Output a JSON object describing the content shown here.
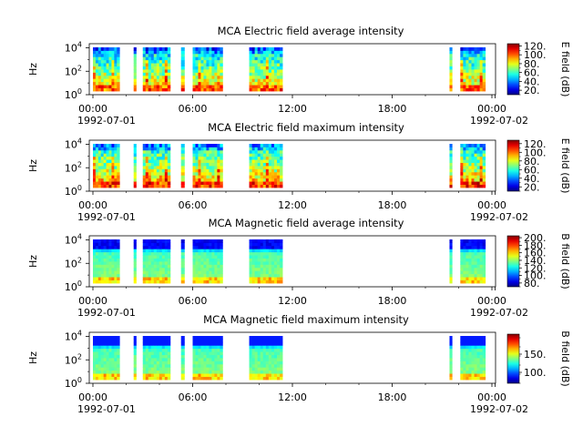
{
  "chart_data": [
    {
      "type": "heatmap",
      "title": "MCA  Electric field average intensity",
      "ylabel": "Hz",
      "y_scale": "log",
      "y_ticks": [
        "10^0",
        "10^2",
        "10^4"
      ],
      "x_ticks": [
        "00:00",
        "06:00",
        "12:00",
        "18:00",
        "00:00"
      ],
      "x_date_start": "1992-07-01",
      "x_date_end": "1992-07-02",
      "colorbar": {
        "label": "E field (dB)",
        "ticks": [
          20,
          40,
          60,
          80,
          100,
          120
        ],
        "range": [
          10,
          125
        ]
      },
      "segments_hours": [
        [
          0.0,
          1.6
        ],
        [
          2.45,
          2.6
        ],
        [
          3.0,
          4.65
        ],
        [
          5.3,
          5.5
        ],
        [
          6.0,
          7.8
        ],
        [
          9.4,
          11.4
        ],
        [
          21.45,
          21.6
        ],
        [
          22.1,
          23.6
        ]
      ],
      "palette": "electric_avg",
      "texture_seed": 11
    },
    {
      "type": "heatmap",
      "title": "MCA  Electric field maximum intensity",
      "ylabel": "Hz",
      "y_scale": "log",
      "y_ticks": [
        "10^0",
        "10^2",
        "10^4"
      ],
      "x_ticks": [
        "00:00",
        "06:00",
        "12:00",
        "18:00",
        "00:00"
      ],
      "x_date_start": "1992-07-01",
      "x_date_end": "1992-07-02",
      "colorbar": {
        "label": "E field (dB)",
        "ticks": [
          20,
          40,
          60,
          80,
          100,
          120
        ],
        "range": [
          10,
          128
        ]
      },
      "segments_hours": [
        [
          0.0,
          1.6
        ],
        [
          2.45,
          2.6
        ],
        [
          3.0,
          4.65
        ],
        [
          5.3,
          5.5
        ],
        [
          6.0,
          7.8
        ],
        [
          9.4,
          11.4
        ],
        [
          21.45,
          21.6
        ],
        [
          22.1,
          23.6
        ]
      ],
      "palette": "electric_max",
      "texture_seed": 23
    },
    {
      "type": "heatmap",
      "title": "MCA  Magnetic field average intensity",
      "ylabel": "Hz",
      "y_scale": "log",
      "y_ticks": [
        "10^0",
        "10^2",
        "10^4"
      ],
      "x_ticks": [
        "00:00",
        "06:00",
        "12:00",
        "18:00",
        "00:00"
      ],
      "x_date_start": "1992-07-01",
      "x_date_end": "1992-07-02",
      "colorbar": {
        "label": "B field (dB)",
        "ticks": [
          80,
          100,
          120,
          140,
          160,
          180,
          200
        ],
        "range": [
          70,
          205
        ]
      },
      "segments_hours": [
        [
          0.0,
          1.6
        ],
        [
          2.45,
          2.6
        ],
        [
          3.0,
          4.65
        ],
        [
          5.3,
          5.5
        ],
        [
          6.0,
          7.8
        ],
        [
          9.4,
          11.4
        ],
        [
          21.45,
          21.6
        ],
        [
          22.1,
          23.6
        ]
      ],
      "palette": "magnetic_avg",
      "texture_seed": 37
    },
    {
      "type": "heatmap",
      "title": "MCA  Magnetic field maximum intensity",
      "ylabel": "Hz",
      "y_scale": "log",
      "y_ticks": [
        "10^0",
        "10^2",
        "10^4"
      ],
      "x_ticks": [
        "00:00",
        "06:00",
        "12:00",
        "18:00",
        "00:00"
      ],
      "x_date_start": "1992-07-01",
      "x_date_end": "1992-07-02",
      "colorbar": {
        "label": "B field (dB)",
        "ticks": [
          100,
          150
        ],
        "range": [
          70,
          205
        ]
      },
      "segments_hours": [
        [
          0.0,
          1.6
        ],
        [
          2.45,
          2.6
        ],
        [
          3.0,
          4.65
        ],
        [
          5.3,
          5.5
        ],
        [
          6.0,
          7.8
        ],
        [
          9.4,
          11.4
        ],
        [
          21.45,
          21.6
        ],
        [
          22.1,
          23.6
        ]
      ],
      "palette": "magnetic_max",
      "texture_seed": 53
    }
  ]
}
